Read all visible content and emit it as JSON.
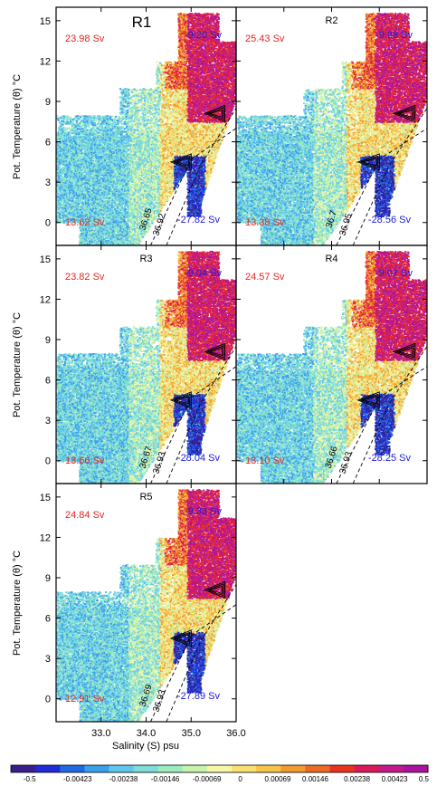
{
  "chart_data": {
    "type": "scatter",
    "xlabel": "Salinity (S) psu",
    "ylabel": "Pot. Temperature (θ) °C",
    "xlim": [
      32.0,
      36.0
    ],
    "ylim": [
      -1.7,
      16.0
    ],
    "x_ticks": [
      "33.0",
      "34.0",
      "35.0",
      "36.0"
    ],
    "y_ticks": [
      "0",
      "3",
      "6",
      "9",
      "12",
      "15"
    ],
    "colors": {
      "positive_text": "#e8251f",
      "negative_text": "#1a1adb",
      "palette": [
        "#3a1f8c",
        "#1f2ad8",
        "#1f6ae0",
        "#3aa0ea",
        "#60c6ee",
        "#7fdcd8",
        "#9cecc0",
        "#c8f2a8",
        "#f4f6a8",
        "#f8e070",
        "#f8c44a",
        "#f09a30",
        "#ec6a26",
        "#e8341f",
        "#d81a5a",
        "#c21a8c",
        "#a8149c"
      ]
    },
    "colorbar": {
      "labels": [
        "-0.5",
        "-0.00423",
        "-0.00238",
        "-0.00146",
        "-0.00069",
        "0",
        "0.00069",
        "0.00146",
        "0.00238",
        "0.00423",
        "0.5"
      ]
    },
    "panels": [
      {
        "title": "R1",
        "pos_top": "23.98 Sv",
        "neg_top": "-9.20 Sv",
        "pos_bottom": "13.62 Sv",
        "neg_bottom": "-27.82 Sv",
        "iso_labels": [
          "36.65",
          "36.92"
        ]
      },
      {
        "title": "R2",
        "pos_top": "25.43 Sv",
        "neg_top": "-9.88 Sv",
        "pos_bottom": "13.38 Sv",
        "neg_bottom": "-28.56 Sv",
        "iso_labels": [
          "36.7",
          "36.95"
        ]
      },
      {
        "title": "R3",
        "pos_top": "23.82 Sv",
        "neg_top": "-9.04 Sv",
        "pos_bottom": "13.66 Sv",
        "neg_bottom": "-28.04 Sv",
        "iso_labels": [
          "36.67",
          "36.93"
        ]
      },
      {
        "title": "R4",
        "pos_top": "24.57 Sv",
        "neg_top": "-9.07 Sv",
        "pos_bottom": "13.10 Sv",
        "neg_bottom": "-28.25 Sv",
        "iso_labels": [
          "36.66",
          "36.93"
        ]
      },
      {
        "title": "R5",
        "pos_top": "24.84 Sv",
        "neg_top": "-9.33 Sv",
        "pos_bottom": "12.91 Sv",
        "neg_bottom": "-27.89 Sv",
        "iso_labels": [
          "36.69",
          "36.93"
        ]
      }
    ]
  }
}
